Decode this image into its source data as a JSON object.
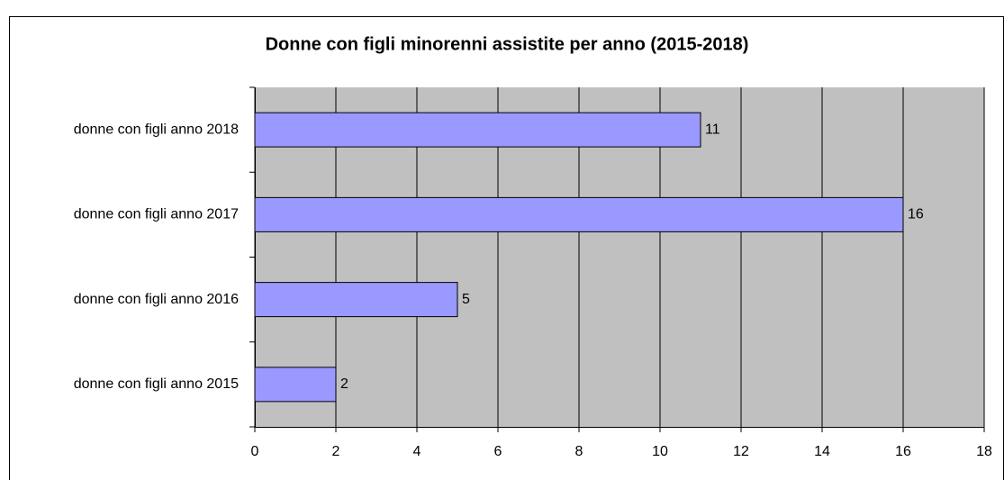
{
  "chart_data": {
    "type": "bar",
    "orientation": "horizontal",
    "title": "Donne con figli minorenni assistite per anno (2015-2018)",
    "categories": [
      "donne con figli anno 2015",
      "donne con figli anno 2016",
      "donne con figli anno 2017",
      "donne con figli anno 2018"
    ],
    "values": [
      2,
      5,
      16,
      11
    ],
    "color": "#9999ff",
    "xlim": [
      0,
      18
    ],
    "xticks": [
      0,
      2,
      4,
      6,
      8,
      10,
      12,
      14,
      16,
      18
    ],
    "grid": true
  }
}
